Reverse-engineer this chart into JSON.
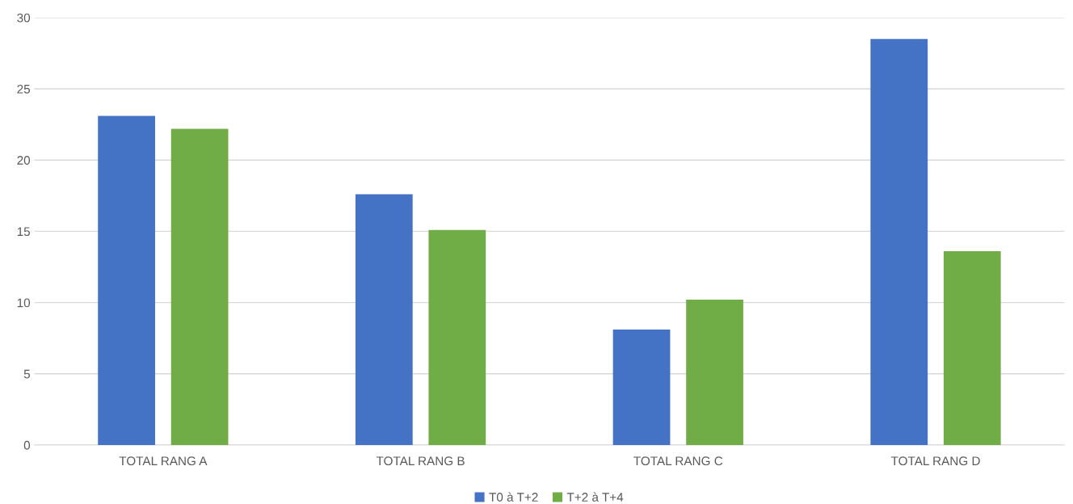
{
  "chart_data": {
    "type": "bar",
    "categories": [
      "TOTAL RANG A",
      "TOTAL RANG B",
      "TOTAL RANG C",
      "TOTAL RANG D"
    ],
    "series": [
      {
        "name": "T0 à T+2",
        "color": "#4472c4",
        "values": [
          23.1,
          17.6,
          8.1,
          28.5
        ]
      },
      {
        "name": "T+2 à T+4",
        "color": "#70ad47",
        "values": [
          22.2,
          15.1,
          10.2,
          13.6
        ]
      }
    ],
    "ylim": [
      0,
      30
    ],
    "yticks": [
      0,
      5,
      10,
      15,
      20,
      25,
      30
    ],
    "grid": "y",
    "legend": "bottom"
  }
}
